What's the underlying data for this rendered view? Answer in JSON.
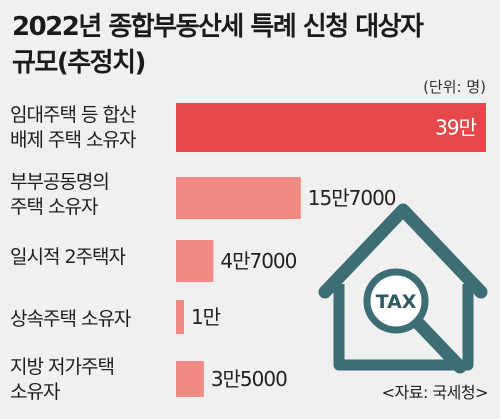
{
  "title": "2022년 종합부동산세 특례 신청 대상자 규모(추정치)",
  "title_lines": [
    "2022년 종합부동산세 특례 신청 대상자",
    "규모(추정치)"
  ],
  "unit_label": "(단위: 명)",
  "source": "<자료: 국세청>",
  "colors": {
    "bar_top": "#e5484a",
    "bar": "#f08a83",
    "value_in_bar": "#ffffff",
    "value_outside": "#222222",
    "house": "#3d6d75",
    "background": "#f0f0f0"
  },
  "icons": [
    "house-icon",
    "tax-magnifier-icon"
  ],
  "tax_text": "TAX",
  "chart_data": {
    "type": "bar",
    "orientation": "horizontal",
    "categories": [
      "임대주택 등 합산\n배제 주택 소유자",
      "부부공동명의\n주택 소유자",
      "일시적 2주택자",
      "상속주택 소유자",
      "지방 저가주택\n소유자"
    ],
    "values": [
      390000,
      157000,
      47000,
      10000,
      35000
    ],
    "value_labels": [
      "39만",
      "15만7000",
      "4만7000",
      "1만",
      "3만5000"
    ],
    "xlim": [
      0,
      390000
    ]
  }
}
